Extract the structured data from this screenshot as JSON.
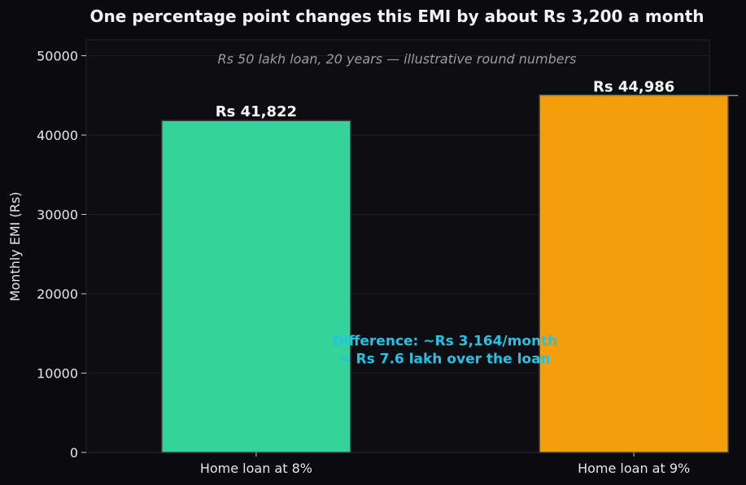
{
  "chart_data": {
    "type": "bar",
    "title": "One percentage point changes this EMI by about Rs 3,200 a month",
    "subtitle": "Rs 50 lakh loan, 20 years — illustrative round numbers",
    "xlabel": "",
    "ylabel": "Monthly EMI (Rs)",
    "categories": [
      "Home loan at 8%",
      "Home loan at 9%"
    ],
    "values": [
      41822,
      44986
    ],
    "value_labels": [
      "Rs 41,822",
      "Rs 44,986"
    ],
    "colors": [
      "#34d399",
      "#f59e0b"
    ],
    "ylim": [
      0,
      52000
    ],
    "yticks": [
      0,
      10000,
      20000,
      30000,
      40000,
      50000
    ],
    "grid": true,
    "annotation": {
      "lines": [
        "Difference: ~Rs 3,164/month",
        "≈ Rs 7.6 lakh over the loan"
      ],
      "x_between_categories": 0.5,
      "y": 13500,
      "color": "#22c3e6"
    }
  }
}
